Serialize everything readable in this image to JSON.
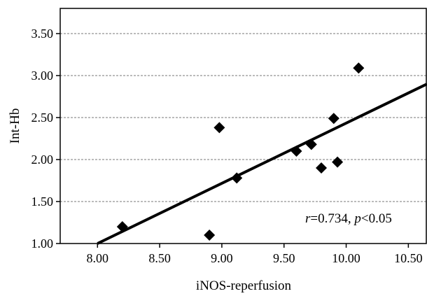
{
  "chart_data": {
    "type": "scatter",
    "xlabel": "iNOS-reperfusion",
    "ylabel": "Int-Hb",
    "xlim": [
      7.7,
      10.65
    ],
    "ylim": [
      1.0,
      3.8
    ],
    "x_ticks": [
      8.0,
      8.5,
      9.0,
      9.5,
      10.0,
      10.5
    ],
    "x_tick_labels": [
      "8.00",
      "8.50",
      "9.00",
      "9.50",
      "10.00",
      "10.50"
    ],
    "y_ticks": [
      1.0,
      1.5,
      2.0,
      2.5,
      3.0,
      3.5
    ],
    "y_tick_labels": [
      "1.00",
      "1.50",
      "2.00",
      "2.50",
      "3.00",
      "3.50"
    ],
    "grid": "horizontal dashed",
    "marker": "diamond",
    "points": [
      {
        "x": 8.2,
        "y": 1.2
      },
      {
        "x": 8.9,
        "y": 1.1
      },
      {
        "x": 8.98,
        "y": 2.38
      },
      {
        "x": 9.12,
        "y": 1.78
      },
      {
        "x": 9.6,
        "y": 2.1
      },
      {
        "x": 9.72,
        "y": 2.18
      },
      {
        "x": 9.8,
        "y": 1.9
      },
      {
        "x": 9.9,
        "y": 2.49
      },
      {
        "x": 9.93,
        "y": 1.97
      },
      {
        "x": 10.1,
        "y": 3.09
      }
    ],
    "fit_line": {
      "x_start": 8.0,
      "y_start": 1.0,
      "x_end": 10.65,
      "y_end": 2.9
    },
    "annotation": {
      "r_symbol": "r",
      "r_text": "=0.734, ",
      "p_symbol": "p",
      "p_text": "<0.05"
    }
  }
}
